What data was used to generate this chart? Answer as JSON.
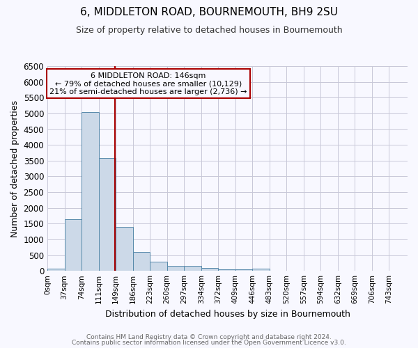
{
  "title": "6, MIDDLETON ROAD, BOURNEMOUTH, BH9 2SU",
  "subtitle": "Size of property relative to detached houses in Bournemouth",
  "xlabel": "Distribution of detached houses by size in Bournemouth",
  "ylabel": "Number of detached properties",
  "bar_color": "#ccd9e8",
  "bar_edge_color": "#5588aa",
  "bin_starts": [
    0,
    37,
    74,
    111,
    148,
    185,
    222,
    259,
    296,
    333,
    370,
    407,
    444,
    481,
    518,
    555,
    592,
    629,
    666,
    703
  ],
  "bin_width": 37,
  "bar_heights": [
    70,
    1650,
    5050,
    3580,
    1400,
    610,
    300,
    150,
    150,
    100,
    55,
    40,
    60,
    0,
    0,
    0,
    0,
    0,
    0,
    0
  ],
  "tick_labels": [
    "0sqm",
    "37sqm",
    "74sqm",
    "111sqm",
    "149sqm",
    "186sqm",
    "223sqm",
    "260sqm",
    "297sqm",
    "334sqm",
    "372sqm",
    "409sqm",
    "446sqm",
    "483sqm",
    "520sqm",
    "557sqm",
    "594sqm",
    "632sqm",
    "669sqm",
    "706sqm",
    "743sqm"
  ],
  "vline_x": 146,
  "vline_color": "#aa0000",
  "ylim": [
    0,
    6500
  ],
  "yticks": [
    0,
    500,
    1000,
    1500,
    2000,
    2500,
    3000,
    3500,
    4000,
    4500,
    5000,
    5500,
    6000,
    6500
  ],
  "annotation_box_text": "6 MIDDLETON ROAD: 146sqm\n← 79% of detached houses are smaller (10,129)\n21% of semi-detached houses are larger (2,736) →",
  "footer_line1": "Contains HM Land Registry data © Crown copyright and database right 2024.",
  "footer_line2": "Contains public sector information licensed under the Open Government Licence v3.0.",
  "bg_color": "#f8f8ff",
  "grid_color": "#c8c8d8"
}
